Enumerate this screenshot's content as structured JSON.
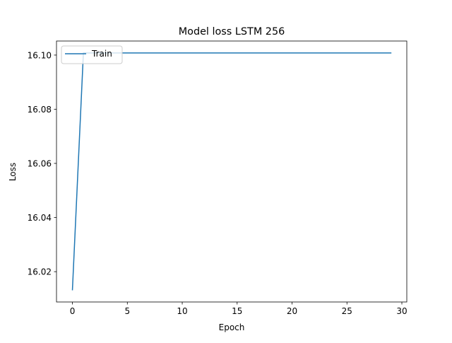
{
  "chart_data": {
    "type": "line",
    "title": "Model loss LSTM 256",
    "xlabel": "Epoch",
    "ylabel": "Loss",
    "xlim": [
      -1.45,
      30.45
    ],
    "ylim": [
      16.0088,
      16.1052
    ],
    "xticks": [
      0,
      5,
      10,
      15,
      20,
      25,
      30
    ],
    "xtick_labels": [
      "0",
      "5",
      "10",
      "15",
      "20",
      "25",
      "30"
    ],
    "yticks": [
      16.02,
      16.04,
      16.06,
      16.08,
      16.1
    ],
    "ytick_labels": [
      "16.02",
      "16.04",
      "16.06",
      "16.08",
      "16.10"
    ],
    "grid": false,
    "legend_position": "upper left",
    "series": [
      {
        "name": "Train",
        "color": "#1f77b4",
        "x": [
          0,
          1,
          2,
          3,
          4,
          5,
          6,
          7,
          8,
          9,
          10,
          11,
          12,
          13,
          14,
          15,
          16,
          17,
          18,
          19,
          20,
          21,
          22,
          23,
          24,
          25,
          26,
          27,
          28,
          29
        ],
        "y": [
          16.0133,
          16.1008,
          16.1008,
          16.1008,
          16.1008,
          16.1008,
          16.1008,
          16.1008,
          16.1008,
          16.1008,
          16.1008,
          16.1008,
          16.1008,
          16.1008,
          16.1008,
          16.1008,
          16.1008,
          16.1008,
          16.1008,
          16.1008,
          16.1008,
          16.1008,
          16.1008,
          16.1008,
          16.1008,
          16.1008,
          16.1008,
          16.1008,
          16.1008,
          16.1008
        ]
      }
    ]
  }
}
